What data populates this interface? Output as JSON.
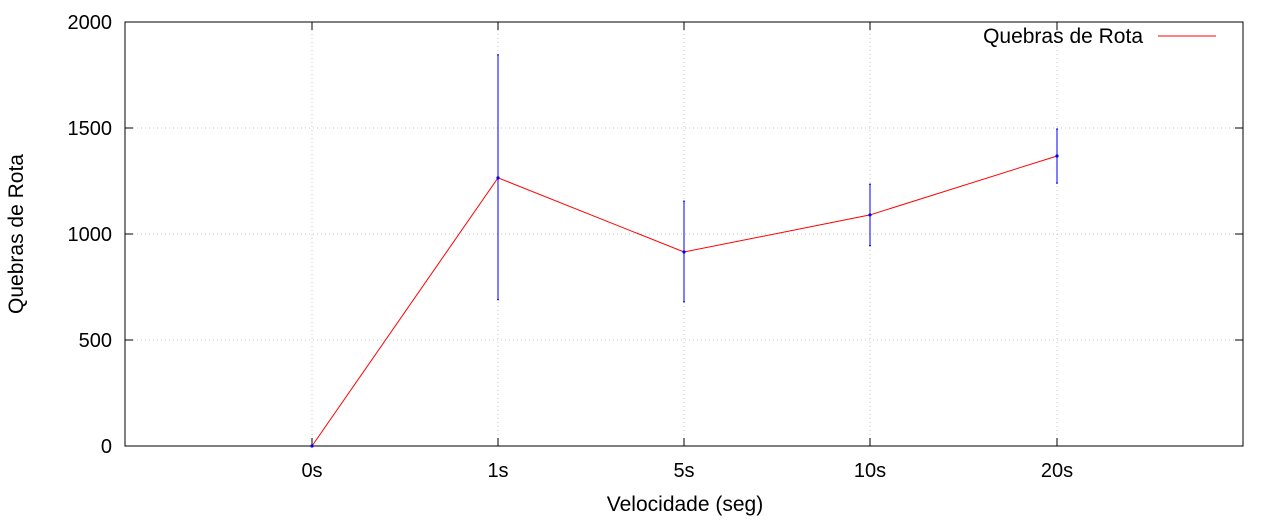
{
  "chart_data": {
    "type": "line",
    "title": "",
    "xlabel": "Velocidade (seg)",
    "ylabel": "Quebras de Rota",
    "categories": [
      "0s",
      "1s",
      "5s",
      "10s",
      "20s"
    ],
    "ylim": [
      0,
      2000
    ],
    "yticks": [
      0,
      500,
      1000,
      1500,
      2000
    ],
    "grid": true,
    "legend_position": "top-right",
    "series": [
      {
        "name": "Quebras de Rota",
        "values": [
          0,
          1265,
          915,
          1090,
          1368
        ],
        "error_low": [
          0,
          690,
          680,
          945,
          1240
        ],
        "error_high": [
          0,
          1845,
          1155,
          1235,
          1495
        ],
        "line_color": "#ff0000",
        "errorbar_color": "#0000ff"
      }
    ]
  }
}
